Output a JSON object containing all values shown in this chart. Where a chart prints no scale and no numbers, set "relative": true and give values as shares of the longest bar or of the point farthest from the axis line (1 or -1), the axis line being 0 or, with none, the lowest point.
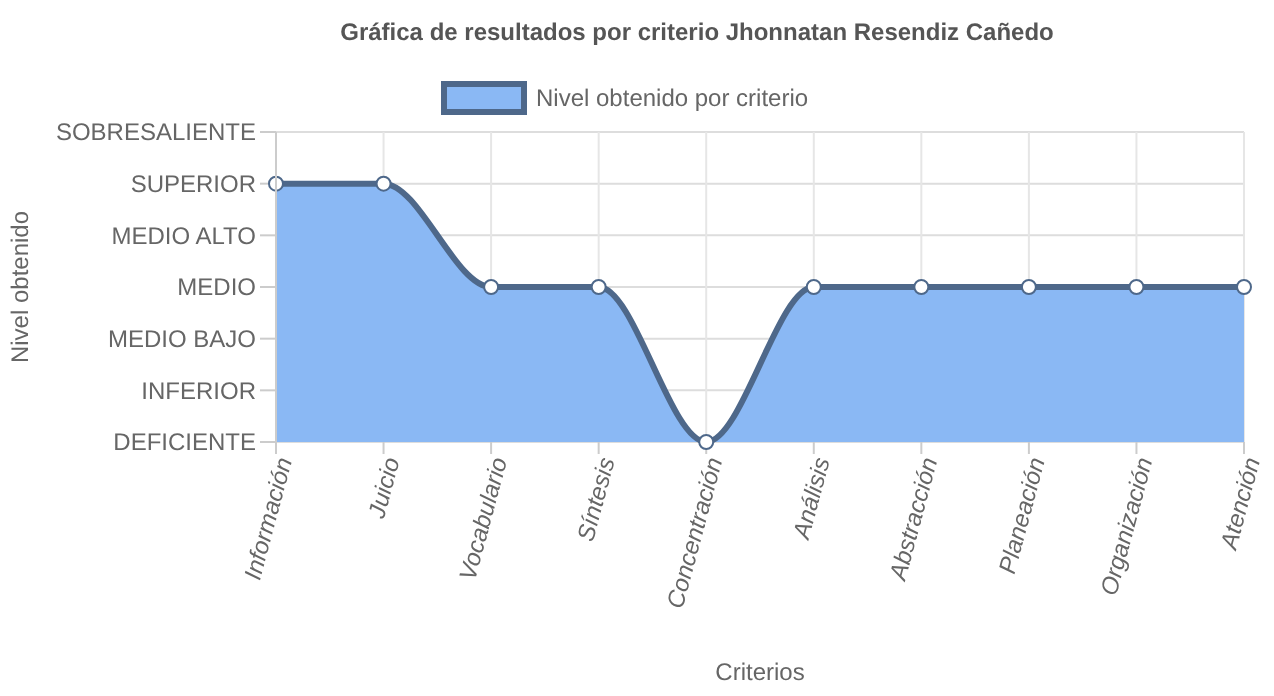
{
  "chart_data": {
    "type": "area",
    "title": "Gráfica de resultados por criterio Jhonnatan Resendiz Cañedo",
    "xlabel": "Criterios",
    "annotations": [
      "Nivel obtenido"
    ],
    "categories": [
      "Información",
      "Juicio",
      "Vocabulario",
      "Síntesis",
      "Concentración",
      "Análisis",
      "Abstracción",
      "Planeación",
      "Organización",
      "Atención"
    ],
    "series": [
      {
        "name": "Nivel obtenido por criterio",
        "color": "#8ab8f4",
        "values": [
          1,
          1,
          0.6,
          0.6,
          0,
          0.6,
          0.6,
          0.6,
          0.6,
          0.6
        ]
      }
    ],
    "relative": true,
    "y_categories": [
      "SOBRESALIENTE",
      "SUPERIOR",
      "MEDIO ALTO",
      "MEDIO",
      "MEDIO BAJO",
      "INFERIOR",
      "DEFICIENTE"
    ],
    "grid": true,
    "legend": "top",
    "marker": "circle",
    "line_style": "solid"
  }
}
